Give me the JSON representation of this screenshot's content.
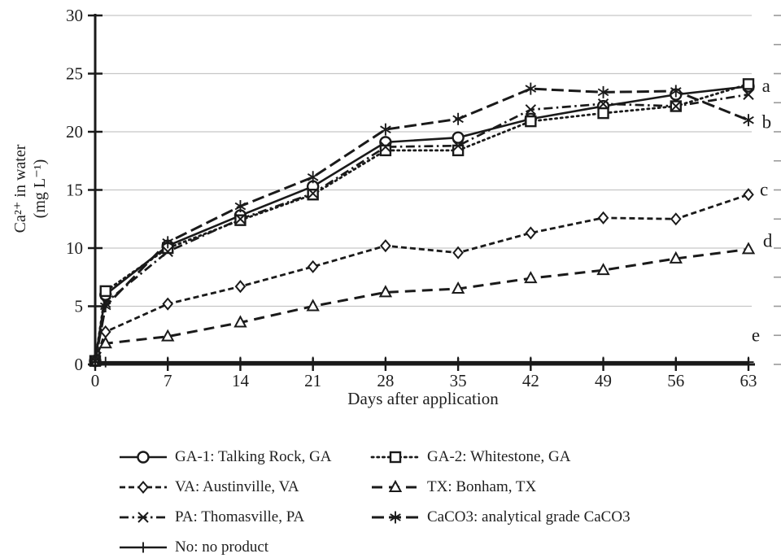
{
  "figure": {
    "xlabel": "Days after application",
    "ylabel_line1": "Ca²⁺ in water",
    "ylabel_line2": "(mg L⁻¹)"
  },
  "colors": {
    "line": "#1a1a1a",
    "grid": "#c6c6c6",
    "minor_tick": "#9a9a9a",
    "text": "#1f1f1f"
  },
  "chart_data": {
    "type": "line",
    "title": "",
    "xlabel": "Days after application",
    "ylabel": "Ca²⁺ in water (mg L⁻¹)",
    "xlim": [
      0,
      63
    ],
    "ylim": [
      0,
      30
    ],
    "xticks": [
      0,
      7,
      14,
      21,
      28,
      35,
      42,
      49,
      56,
      63
    ],
    "yticks": [
      0,
      5,
      10,
      15,
      20,
      25,
      30
    ],
    "grid": "horizontal",
    "legend_position": "below",
    "x": [
      0,
      1,
      7,
      14,
      21,
      28,
      35,
      42,
      49,
      56,
      63
    ],
    "series": [
      {
        "key": "ga1",
        "label": "GA-1: Talking Rock, GA",
        "marker": "circle",
        "dash": "solid",
        "values": [
          0.3,
          6.0,
          10.2,
          12.8,
          15.3,
          19.1,
          19.5,
          21.1,
          22.2,
          23.2,
          23.9
        ]
      },
      {
        "key": "ga2",
        "label": "GA-2: Whitestone, GA",
        "marker": "square",
        "dash": "dot",
        "values": [
          0.3,
          6.3,
          10.0,
          12.4,
          14.6,
          18.4,
          18.4,
          20.9,
          21.6,
          22.2,
          24.1
        ]
      },
      {
        "key": "va",
        "label": "VA: Austinville, VA",
        "marker": "diamond",
        "dash": "dash",
        "values": [
          0.3,
          2.8,
          5.2,
          6.7,
          8.4,
          10.2,
          9.6,
          11.3,
          12.6,
          12.5,
          14.6
        ]
      },
      {
        "key": "tx",
        "label": "TX: Bonham, TX",
        "marker": "triangle",
        "dash": "longdash",
        "values": [
          0.3,
          1.8,
          2.4,
          3.6,
          5.0,
          6.2,
          6.5,
          7.4,
          8.1,
          9.1,
          9.9
        ]
      },
      {
        "key": "pa",
        "label": "PA: Thomasville, PA",
        "marker": "x",
        "dash": "dashdot",
        "values": [
          0.3,
          5.3,
          9.7,
          12.5,
          14.7,
          18.7,
          18.8,
          21.9,
          22.4,
          22.2,
          23.2
        ]
      },
      {
        "key": "caco3",
        "label": "CaCO3: analytical grade CaCO3",
        "marker": "asterisk",
        "dash": "longdash2",
        "values": [
          0.3,
          5.0,
          10.5,
          13.6,
          16.1,
          20.2,
          21.1,
          23.7,
          23.4,
          23.5,
          21.0
        ]
      },
      {
        "key": "no",
        "label": "No: no product",
        "marker": "plus",
        "dash": "solid",
        "values": [
          0.2,
          0.2,
          0.2,
          0.2,
          0.2,
          0.2,
          0.2,
          0.2,
          0.2,
          0.2,
          0.2
        ]
      }
    ],
    "annotations": [
      {
        "text": "a",
        "x": 64.3,
        "y": 23.9
      },
      {
        "text": "b",
        "x": 64.3,
        "y": 20.8
      },
      {
        "text": "c",
        "x": 64.1,
        "y": 15.0
      },
      {
        "text": "d",
        "x": 64.4,
        "y": 10.6
      },
      {
        "text": "e",
        "x": 63.3,
        "y": 2.5
      }
    ]
  },
  "legend": {
    "column1_keys": [
      "ga1",
      "va",
      "pa",
      "no"
    ],
    "column2_keys": [
      "ga2",
      "tx",
      "caco3"
    ]
  }
}
